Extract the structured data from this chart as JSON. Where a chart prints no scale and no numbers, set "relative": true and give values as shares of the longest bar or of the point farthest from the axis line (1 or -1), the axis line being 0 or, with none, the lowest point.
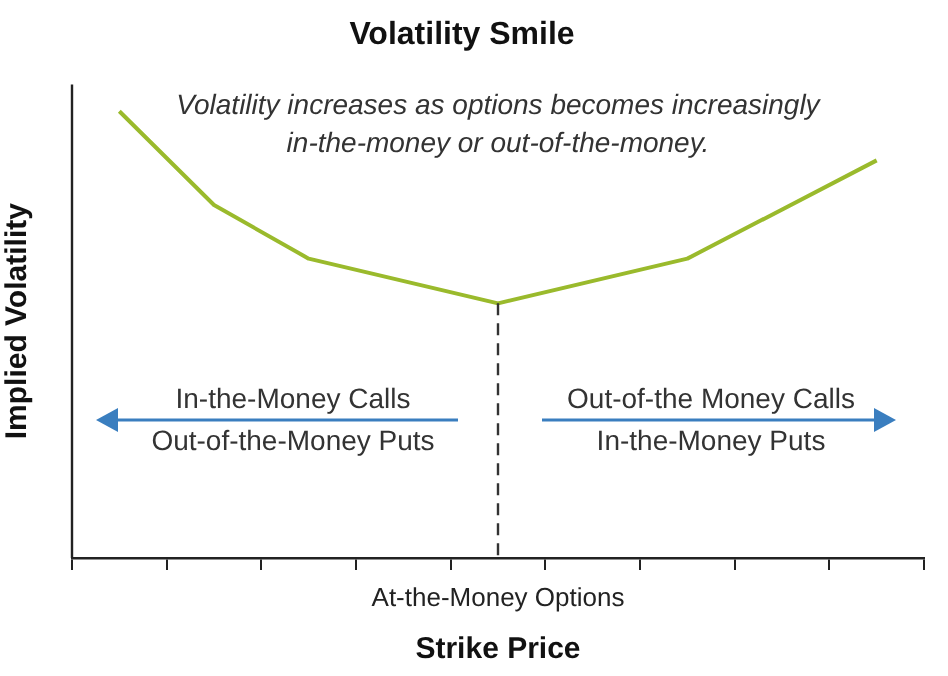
{
  "chart_data": {
    "type": "line",
    "title": "Volatility Smile",
    "xlabel": "Strike Price",
    "ylabel": "Implied Volatility",
    "categories": [
      null,
      null,
      null,
      null,
      null,
      null,
      null,
      null,
      null
    ],
    "series": [
      {
        "color": "#9aba2c",
        "values": [
          1,
          0.79,
          0.67,
          null,
          0.57,
          null,
          0.67,
          null,
          0.89
        ]
      }
    ],
    "relative": true,
    "marker": "none",
    "line_style": "solid",
    "grid": false,
    "legend": false,
    "annotations": [
      "Volatility increases as options becomes increasingly in-the-money or out-of-the-money.",
      "In-the-Money Calls",
      "Out-of-the-Money Puts",
      "Out-of-the Money Calls",
      "In-the-Money Puts",
      "At-the-Money Options"
    ]
  }
}
